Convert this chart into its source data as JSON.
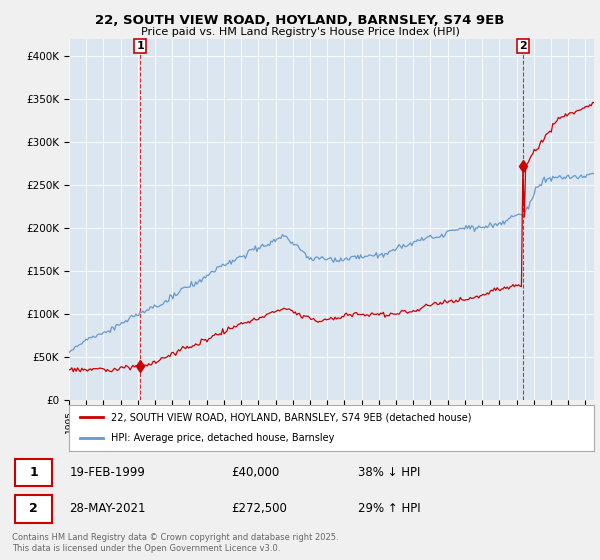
{
  "title_line1": "22, SOUTH VIEW ROAD, HOYLAND, BARNSLEY, S74 9EB",
  "title_line2": "Price paid vs. HM Land Registry's House Price Index (HPI)",
  "background_color": "#f0f0f0",
  "plot_bg_color": "#dce6f0",
  "red_color": "#cc0000",
  "blue_color": "#6699cc",
  "transaction1_date": "19-FEB-1999",
  "transaction1_price": 40000,
  "transaction1_label": "38% ↓ HPI",
  "transaction2_date": "28-MAY-2021",
  "transaction2_price": 272500,
  "transaction2_label": "29% ↑ HPI",
  "legend_label1": "22, SOUTH VIEW ROAD, HOYLAND, BARNSLEY, S74 9EB (detached house)",
  "legend_label2": "HPI: Average price, detached house, Barnsley",
  "footer": "Contains HM Land Registry data © Crown copyright and database right 2025.\nThis data is licensed under the Open Government Licence v3.0.",
  "ylim_max": 420000,
  "start_year": 1995.0,
  "end_year": 2025.5,
  "t1_year": 1999.12,
  "t2_year": 2021.38
}
